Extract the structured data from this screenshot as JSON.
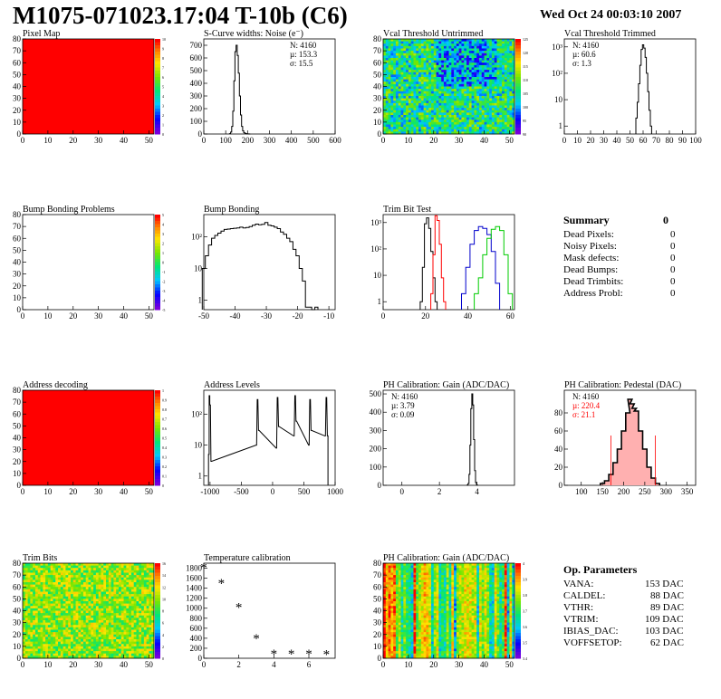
{
  "header": {
    "title": "M1075-071023.17:04 T-10b (C6)",
    "date": "Wed Oct 24 00:03:10 2007"
  },
  "colors": {
    "noise": "#000000",
    "trim_black": "#000000",
    "trim_red": "#ff0000",
    "trim_blue": "#0000cc",
    "trim_green": "#00cc00",
    "map_fill": "#ff0000",
    "pedestal_red": "#ff0000"
  },
  "summary": {
    "title": "Summary",
    "total": "0",
    "rows": [
      {
        "label": "Dead Pixels:",
        "value": "0"
      },
      {
        "label": "Noisy Pixels:",
        "value": "0"
      },
      {
        "label": "Mask defects:",
        "value": "0"
      },
      {
        "label": "Dead Bumps:",
        "value": "0"
      },
      {
        "label": "Dead Trimbits:",
        "value": "0"
      },
      {
        "label": "Address Probl:",
        "value": "0"
      }
    ]
  },
  "op_params": {
    "title": "Op. Parameters",
    "rows": [
      {
        "label": "VANA:",
        "value": "153 DAC"
      },
      {
        "label": "CALDEL:",
        "value": "88 DAC"
      },
      {
        "label": "VTHR:",
        "value": "89 DAC"
      },
      {
        "label": "VTRIM:",
        "value": "109 DAC"
      },
      {
        "label": "IBIAS_DAC:",
        "value": "103 DAC"
      },
      {
        "label": "VOFFSETOP:",
        "value": "62 DAC"
      }
    ]
  },
  "chart_data": [
    {
      "id": "pixel_map",
      "type": "heatmap",
      "title": "Pixel Map",
      "xlim": [
        0,
        52
      ],
      "ylim": [
        0,
        80
      ],
      "xticks": [
        0,
        10,
        20,
        30,
        40,
        50
      ],
      "yticks": [
        0,
        10,
        20,
        30,
        40,
        50,
        60,
        70,
        80
      ],
      "fill": "uniform-max",
      "zticks": [
        "10",
        "9",
        "8",
        "7",
        "6",
        "5",
        "4",
        "3",
        "2",
        "1",
        "0"
      ]
    },
    {
      "id": "scurve_noise",
      "type": "bar",
      "title": "S-Curve widths: Noise (e⁻)",
      "xlim": [
        0,
        600
      ],
      "ylim": [
        0,
        750
      ],
      "xticks": [
        0,
        100,
        200,
        300,
        400,
        500,
        600
      ],
      "yticks": [
        0,
        100,
        200,
        300,
        400,
        500,
        600,
        700
      ],
      "stats": [
        "N: 4160",
        "µ: 153.3",
        "σ: 15.5"
      ],
      "x": [
        120,
        125,
        130,
        135,
        140,
        145,
        150,
        155,
        160,
        165,
        170,
        175,
        180,
        185,
        190,
        195,
        200,
        205,
        210
      ],
      "values": [
        3,
        15,
        60,
        180,
        420,
        650,
        700,
        620,
        480,
        300,
        150,
        60,
        25,
        10,
        5,
        3,
        1,
        1,
        0
      ]
    },
    {
      "id": "vcal_untrimmed",
      "type": "heatmap",
      "title": "Vcal Threshold Untrimmed",
      "xlim": [
        0,
        52
      ],
      "ylim": [
        0,
        80
      ],
      "xticks": [
        0,
        10,
        20,
        30,
        40,
        50
      ],
      "yticks": [
        0,
        10,
        20,
        30,
        40,
        50,
        60,
        70,
        80
      ],
      "fill": "noisy-mid-low",
      "zticks": [
        "125",
        "120",
        "115",
        "110",
        "105",
        "100",
        "95",
        "90"
      ]
    },
    {
      "id": "vcal_trimmed",
      "type": "bar",
      "title": "Vcal Threshold Trimmed",
      "xlim": [
        0,
        100
      ],
      "ylim": [
        0.5,
        2000
      ],
      "log_y": true,
      "xticks": [
        0,
        10,
        20,
        30,
        40,
        50,
        60,
        70,
        80,
        90,
        100
      ],
      "yticks": [
        1,
        10,
        100,
        1000
      ],
      "stats": [
        "N: 4160",
        "µ: 60.6",
        "σ:  1.3"
      ],
      "x": [
        55,
        56,
        57,
        58,
        59,
        60,
        61,
        62,
        63,
        64,
        65,
        66
      ],
      "values": [
        2,
        8,
        40,
        200,
        800,
        1200,
        900,
        400,
        100,
        20,
        4,
        1
      ]
    },
    {
      "id": "bump_map",
      "type": "heatmap",
      "title": "Bump Bonding Problems",
      "xlim": [
        0,
        52
      ],
      "ylim": [
        0,
        80
      ],
      "xticks": [
        0,
        10,
        20,
        30,
        40,
        50
      ],
      "yticks": [
        0,
        10,
        20,
        30,
        40,
        50,
        60,
        70,
        80
      ],
      "fill": "empty",
      "zticks": [
        "5",
        "4",
        "3",
        "2",
        "1",
        "0",
        "-1",
        "-2",
        "-3",
        "-4",
        "-5"
      ]
    },
    {
      "id": "bump_bonding",
      "type": "bar",
      "title": "Bump Bonding",
      "xlim": [
        -50,
        -8
      ],
      "ylim": [
        0.5,
        500
      ],
      "log_y": true,
      "xticks": [
        -50,
        -40,
        -30,
        -20,
        -10
      ],
      "yticks": [
        1,
        10,
        100
      ],
      "x": [
        -50,
        -49,
        -48,
        -47,
        -46,
        -45,
        -44,
        -43,
        -42,
        -41,
        -40,
        -39,
        -38,
        -37,
        -36,
        -35,
        -34,
        -33,
        -32,
        -31,
        -30,
        -29,
        -28,
        -27,
        -26,
        -25,
        -24,
        -23,
        -22,
        -21,
        -20,
        -19,
        -18,
        -17,
        -16,
        -15,
        -14
      ],
      "values": [
        10,
        25,
        55,
        90,
        110,
        130,
        150,
        170,
        175,
        180,
        185,
        190,
        200,
        190,
        195,
        210,
        230,
        250,
        240,
        245,
        280,
        230,
        220,
        200,
        180,
        140,
        120,
        90,
        70,
        40,
        25,
        10,
        4,
        0.6,
        0.6,
        0,
        0.6
      ]
    },
    {
      "id": "trim_bit_test",
      "type": "line",
      "title": "Trim Bit Test",
      "xlim": [
        0,
        62
      ],
      "ylim": [
        0.5,
        2000
      ],
      "log_y": true,
      "xticks": [
        0,
        20,
        40,
        60
      ],
      "yticks": [
        1,
        10,
        100,
        1000
      ],
      "series": [
        {
          "x": [
            18,
            19,
            20,
            21,
            22,
            23,
            24,
            25
          ],
          "values": [
            1,
            20,
            900,
            1500,
            600,
            80,
            8,
            1
          ]
        },
        {
          "x": [
            23,
            24,
            25,
            26,
            27,
            28,
            29
          ],
          "values": [
            2,
            60,
            1800,
            1200,
            150,
            8,
            1
          ]
        },
        {
          "x": [
            38,
            40,
            42,
            44,
            46,
            48,
            50,
            52,
            54
          ],
          "values": [
            2,
            20,
            150,
            500,
            700,
            600,
            350,
            80,
            5
          ]
        },
        {
          "x": [
            44,
            46,
            48,
            50,
            52,
            54,
            56,
            58,
            60
          ],
          "values": [
            2,
            8,
            60,
            250,
            550,
            700,
            500,
            60,
            2
          ]
        }
      ]
    },
    {
      "id": "address_decoding",
      "type": "heatmap",
      "title": "Address decoding",
      "xlim": [
        0,
        52
      ],
      "ylim": [
        0,
        80
      ],
      "xticks": [
        0,
        10,
        20,
        30,
        40,
        50
      ],
      "yticks": [
        0,
        10,
        20,
        30,
        40,
        50,
        60,
        70,
        80
      ],
      "fill": "uniform-max",
      "zticks": [
        "1",
        "0.9",
        "0.8",
        "0.7",
        "0.6",
        "0.5",
        "0.4",
        "0.3",
        "0.2",
        "0.1",
        "0"
      ]
    },
    {
      "id": "address_levels",
      "type": "bar",
      "title": "Address Levels",
      "xlim": [
        -1100,
        1000
      ],
      "ylim": [
        0.5,
        600
      ],
      "log_y": true,
      "xticks": [
        -1000,
        -500,
        0,
        500,
        1000
      ],
      "yticks": [
        1,
        10,
        100
      ],
      "x": [
        -1020,
        -1010,
        -1000,
        -980,
        -260,
        -240,
        -220,
        60,
        80,
        100,
        340,
        360,
        380,
        580,
        600,
        620,
        840,
        860,
        880
      ],
      "values": [
        5,
        400,
        200,
        3,
        10,
        300,
        30,
        8,
        350,
        40,
        20,
        400,
        60,
        10,
        300,
        30,
        20,
        350,
        20
      ]
    },
    {
      "id": "ph_gain",
      "type": "bar",
      "title": "PH Calibration: Gain (ADC/DAC)",
      "xlim": [
        -1,
        6
      ],
      "ylim": [
        0,
        520
      ],
      "xticks": [
        0,
        2,
        4
      ],
      "yticks": [
        0,
        100,
        200,
        300,
        400,
        500
      ],
      "stats": [
        "N: 4160",
        "µ: 3.79",
        "σ: 0.09"
      ],
      "x": [
        3.5,
        3.55,
        3.6,
        3.65,
        3.7,
        3.75,
        3.8,
        3.85,
        3.9,
        3.95,
        4.0
      ],
      "values": [
        2,
        10,
        60,
        220,
        420,
        500,
        440,
        250,
        80,
        15,
        2
      ]
    },
    {
      "id": "ph_pedestal",
      "type": "bar",
      "title": "PH Calibration: Pedestal (DAC)",
      "xlim": [
        60,
        370
      ],
      "ylim": [
        0,
        105
      ],
      "xticks": [
        100,
        150,
        200,
        250,
        300,
        350
      ],
      "yticks": [
        0,
        20,
        40,
        60,
        80
      ],
      "stats": [
        "N: 4160",
        "µ: 220.4",
        "σ: 21.1"
      ],
      "x": [
        150,
        160,
        170,
        180,
        190,
        200,
        210,
        215,
        220,
        225,
        230,
        240,
        250,
        260,
        270,
        280
      ],
      "values": [
        2,
        5,
        12,
        25,
        40,
        60,
        80,
        95,
        90,
        85,
        82,
        60,
        40,
        20,
        8,
        2
      ]
    },
    {
      "id": "trim_bits",
      "type": "heatmap",
      "title": "Trim Bits",
      "xlim": [
        0,
        52
      ],
      "ylim": [
        0,
        80
      ],
      "xticks": [
        0,
        10,
        20,
        30,
        40,
        50
      ],
      "yticks": [
        0,
        10,
        20,
        30,
        40,
        50,
        60,
        70,
        80
      ],
      "fill": "noisy-high",
      "zticks": [
        "16",
        "14",
        "12",
        "10",
        "8",
        "6",
        "4",
        "2",
        "0"
      ]
    },
    {
      "id": "temp_calibration",
      "type": "scatter",
      "title": "Temperature calibration",
      "xlim": [
        0,
        7.5
      ],
      "ylim": [
        0,
        1900
      ],
      "xticks": [
        0,
        2,
        4,
        6
      ],
      "yticks": [
        0,
        200,
        400,
        600,
        800,
        1000,
        1200,
        1400,
        1600,
        1800
      ],
      "x": [
        0,
        1,
        2,
        3,
        4,
        5,
        6,
        7
      ],
      "values": [
        1800,
        1480,
        1000,
        380,
        70,
        70,
        70,
        60
      ]
    },
    {
      "id": "ph_gain_map",
      "type": "heatmap",
      "title": "PH Calibration: Gain (ADC/DAC)",
      "xlim": [
        0,
        52
      ],
      "ylim": [
        0,
        80
      ],
      "xticks": [
        0,
        10,
        20,
        30,
        40,
        50
      ],
      "yticks": [
        0,
        10,
        20,
        30,
        40,
        50,
        60,
        70,
        80
      ],
      "fill": "column-stripes",
      "zticks": [
        "4",
        "3.9",
        "3.8",
        "3.7",
        "3.6",
        "3.5",
        "3.4"
      ]
    }
  ]
}
